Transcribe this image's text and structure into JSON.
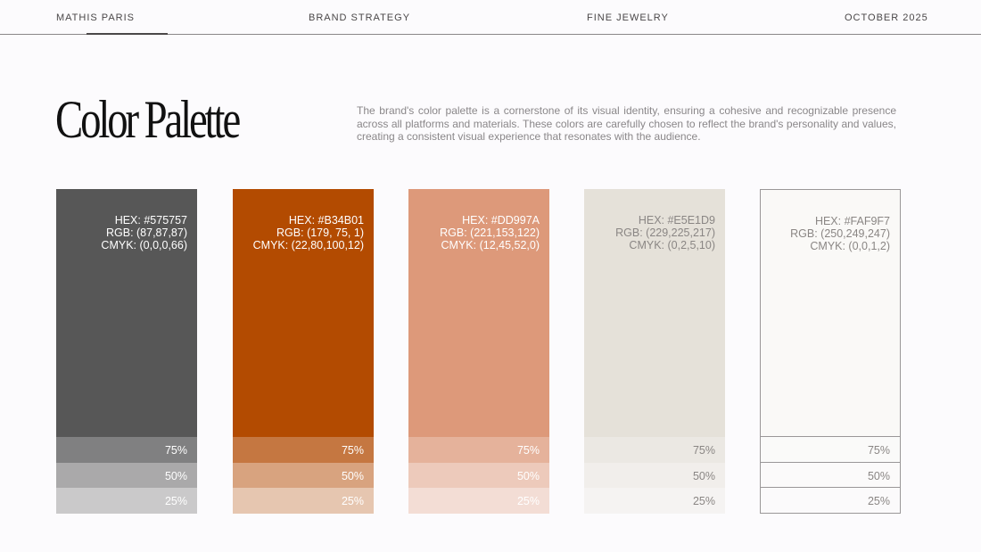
{
  "header": {
    "items": [
      "MATHIS PARIS",
      "BRAND STRATEGY",
      "FINE JEWELRY",
      "OCTOBER 2025"
    ]
  },
  "title": "Color Palette",
  "description": "The brand's color palette is a cornerstone of its visual identity, ensuring a cohesive and recognizable presence across all platforms and materials. These colors are carefully chosen to reflect the brand's personality and values, creating a consistent visual experience that resonates with the audience.",
  "tints": [
    "75%",
    "50%",
    "25%"
  ],
  "swatches": [
    {
      "color": "#575757",
      "text_color": "#ffffff",
      "hex": "HEX: #575757",
      "rgb": "RGB: (87,87,87)",
      "cmyk": "CMYK: (0,0,0,66)"
    },
    {
      "color": "#b34b01",
      "text_color": "#ffffff",
      "hex": "HEX: #B34B01",
      "rgb": "RGB: (179, 75, 1)",
      "cmyk": "CMYK: (22,80,100,12)"
    },
    {
      "color": "#dd997a",
      "text_color": "#ffffff",
      "hex": "HEX: #DD997A",
      "rgb": "RGB: (221,153,122)",
      "cmyk": "CMYK: (12,45,52,0)"
    },
    {
      "color": "#e5e1d9",
      "text_color": "#8a8684",
      "hex": "HEX: #E5E1D9",
      "rgb": "RGB: (229,225,217)",
      "cmyk": "CMYK: (0,2,5,10)"
    },
    {
      "color": "#faf9f7",
      "text_color": "#8a8684",
      "hex": "HEX: #FAF9F7",
      "rgb": "RGB: (250,249,247)",
      "cmyk": "CMYK: (0,0,1,2)"
    }
  ]
}
